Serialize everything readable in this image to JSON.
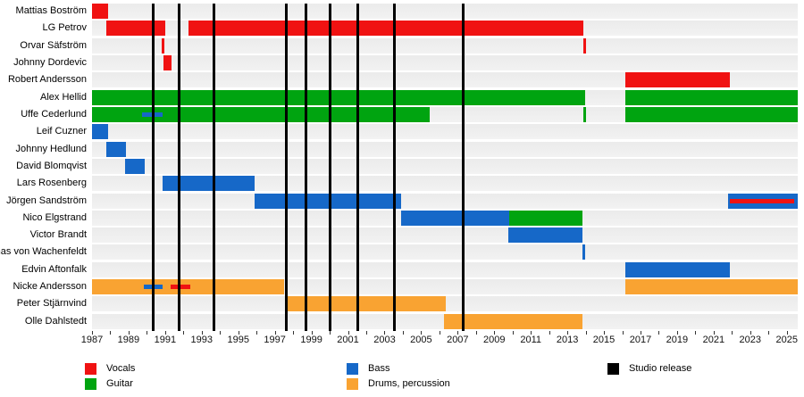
{
  "page": {
    "background": "#ffffff"
  },
  "legend": {
    "items": [
      {
        "label": "Vocals",
        "role": "vocals"
      },
      {
        "label": "Guitar",
        "role": "guitar"
      },
      {
        "label": "Bass",
        "role": "bass"
      },
      {
        "label": "Drums, percussion",
        "role": "drums"
      },
      {
        "label": "Studio release",
        "role": "release"
      }
    ]
  },
  "chart_data": {
    "type": "bar",
    "subtype": "gantt-timeline",
    "title": "",
    "xlabel": "",
    "ylabel": "",
    "grid": false,
    "legend_position": "bottom",
    "x_axis": {
      "start": 1987,
      "end": 2025.6,
      "tick_label_start": 1987,
      "tick_label_step": 2,
      "tick_label_end": 2025,
      "minor_tick_step": 1
    },
    "roles": {
      "vocals": "#F01212",
      "guitar": "#00A410",
      "bass": "#1668C8",
      "drums": "#F9A332",
      "release": "#000000"
    },
    "studio_releases": [
      1990.3,
      1991.75,
      1993.65,
      1997.6,
      1998.7,
      2000.0,
      2001.5,
      2003.5,
      2007.3
    ],
    "members": [
      {
        "name": "Mattias Boström",
        "bars": [
          {
            "role": "vocals",
            "start": 1987,
            "end": 1987.9
          }
        ]
      },
      {
        "name": "LG Petrov",
        "bars": [
          {
            "role": "vocals",
            "start": 1987.8,
            "end": 1991.0
          },
          {
            "role": "vocals",
            "start": 1992.3,
            "end": 2013.87
          }
        ]
      },
      {
        "name": "Orvar Säfström",
        "bars": [
          {
            "role": "vocals",
            "start": 1990.82,
            "end": 1990.98
          },
          {
            "role": "vocals",
            "start": 2013.87,
            "end": 2014.02
          }
        ]
      },
      {
        "name": "Johnny Dordevic",
        "bars": [
          {
            "role": "vocals",
            "start": 1990.9,
            "end": 1991.37
          }
        ]
      },
      {
        "name": "Robert Andersson",
        "bars": [
          {
            "role": "vocals",
            "start": 2016.17,
            "end": 2021.88
          }
        ]
      },
      {
        "name": "Alex Hellid",
        "bars": [
          {
            "role": "guitar",
            "start": 1987,
            "end": 2013.97
          },
          {
            "role": "guitar",
            "start": 2016.17,
            "end": 2025.6
          }
        ]
      },
      {
        "name": "Uffe Cederlund",
        "bars": [
          {
            "role": "guitar",
            "start": 1987,
            "end": 2005.47
          },
          {
            "role": "guitar",
            "start": 2013.87,
            "end": 2014.0
          },
          {
            "role": "guitar",
            "start": 2016.17,
            "end": 2025.6
          }
        ],
        "overlays": [
          {
            "role": "bass",
            "start": 1989.75,
            "end": 1990.88
          }
        ]
      },
      {
        "name": "Leif Cuzner",
        "bars": [
          {
            "role": "bass",
            "start": 1987,
            "end": 1987.9
          }
        ]
      },
      {
        "name": "Johnny Hedlund",
        "bars": [
          {
            "role": "bass",
            "start": 1987.8,
            "end": 1988.86
          }
        ]
      },
      {
        "name": "David Blomqvist",
        "bars": [
          {
            "role": "bass",
            "start": 1988.81,
            "end": 1989.87
          }
        ]
      },
      {
        "name": "Lars Rosenberg",
        "bars": [
          {
            "role": "bass",
            "start": 1990.85,
            "end": 1995.9
          }
        ]
      },
      {
        "name": "Jörgen Sandström",
        "bars": [
          {
            "role": "bass",
            "start": 1995.9,
            "end": 2003.91
          },
          {
            "role": "bass",
            "start": 2021.79,
            "end": 2025.6
          }
        ],
        "overlays": [
          {
            "role": "vocals",
            "start": 2021.89,
            "end": 2025.4
          }
        ]
      },
      {
        "name": "Nico Elgstrand",
        "bars": [
          {
            "role": "bass",
            "start": 2003.91,
            "end": 2009.82
          },
          {
            "role": "guitar",
            "start": 2009.82,
            "end": 2013.84
          }
        ]
      },
      {
        "name": "Victor Brandt",
        "bars": [
          {
            "role": "bass",
            "start": 2009.79,
            "end": 2013.84
          }
        ]
      },
      {
        "name": "Thomas von Wachenfeldt",
        "bars": [
          {
            "role": "bass",
            "start": 2013.82,
            "end": 2013.97
          }
        ]
      },
      {
        "name": "Edvin Aftonfalk",
        "bars": [
          {
            "role": "bass",
            "start": 2016.17,
            "end": 2021.87
          }
        ]
      },
      {
        "name": "Nicke Andersson",
        "bars": [
          {
            "role": "drums",
            "start": 1987,
            "end": 1997.52
          },
          {
            "role": "drums",
            "start": 2016.17,
            "end": 2025.6
          }
        ],
        "overlays": [
          {
            "role": "bass",
            "start": 1989.84,
            "end": 1990.85
          },
          {
            "role": "vocals",
            "start": 1991.3,
            "end": 1992.39
          }
        ]
      },
      {
        "name": "Peter Stjärnvind",
        "bars": [
          {
            "role": "drums",
            "start": 1997.55,
            "end": 2006.35
          }
        ]
      },
      {
        "name": "Olle Dahlstedt",
        "bars": [
          {
            "role": "drums",
            "start": 2006.26,
            "end": 2013.84
          }
        ]
      }
    ]
  }
}
